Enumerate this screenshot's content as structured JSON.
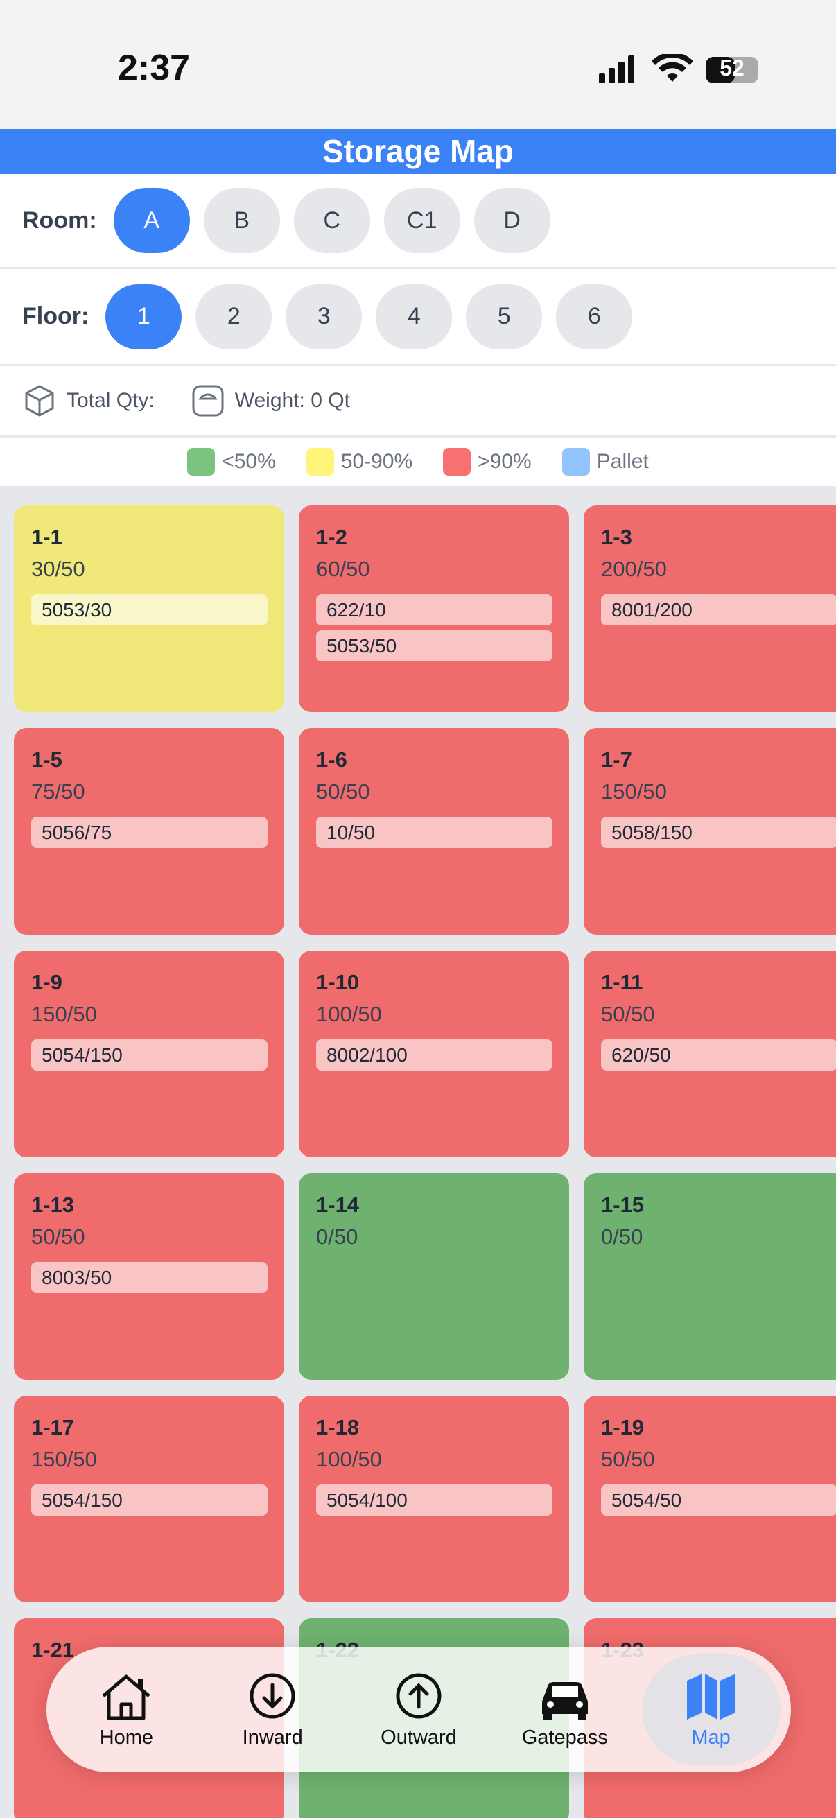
{
  "status": {
    "time": "2:37",
    "battery": "52"
  },
  "header": {
    "title": "Storage Map"
  },
  "room": {
    "label": "Room:",
    "options": [
      "A",
      "B",
      "C",
      "C1",
      "D"
    ],
    "selected": "A"
  },
  "floor": {
    "label": "Floor:",
    "options": [
      "1",
      "2",
      "3",
      "4",
      "5",
      "6"
    ],
    "selected": "1"
  },
  "summary": {
    "total": "Total Qty:",
    "weight": "Weight: 0 Qt"
  },
  "legend": [
    {
      "label": "<50%",
      "color": "#7bc47f"
    },
    {
      "label": "50-90%",
      "color": "#fef57a"
    },
    {
      "label": ">90%",
      "color": "#f87171"
    },
    {
      "label": "Pallet",
      "color": "#93c5fd"
    }
  ],
  "cells": [
    {
      "id": "1-1",
      "qty": "30/50",
      "color": "#f0e97a",
      "items": [
        "5053/30"
      ]
    },
    {
      "id": "1-2",
      "qty": "60/50",
      "color": "#f06b6b",
      "items": [
        "622/10",
        "5053/50"
      ]
    },
    {
      "id": "1-3",
      "qty": "200/50",
      "color": "#f06b6b",
      "items": [
        "8001/200"
      ]
    },
    {
      "id": "1-5",
      "qty": "75/50",
      "color": "#f06b6b",
      "items": [
        "5056/75"
      ]
    },
    {
      "id": "1-6",
      "qty": "50/50",
      "color": "#f06b6b",
      "items": [
        "10/50"
      ]
    },
    {
      "id": "1-7",
      "qty": "150/50",
      "color": "#f06b6b",
      "items": [
        "5058/150"
      ]
    },
    {
      "id": "1-9",
      "qty": "150/50",
      "color": "#f06b6b",
      "items": [
        "5054/150"
      ]
    },
    {
      "id": "1-10",
      "qty": "100/50",
      "color": "#f06b6b",
      "items": [
        "8002/100"
      ]
    },
    {
      "id": "1-11",
      "qty": "50/50",
      "color": "#f06b6b",
      "items": [
        "620/50"
      ]
    },
    {
      "id": "1-13",
      "qty": "50/50",
      "color": "#f06b6b",
      "items": [
        "8003/50"
      ]
    },
    {
      "id": "1-14",
      "qty": "0/50",
      "color": "#6fb26f",
      "items": []
    },
    {
      "id": "1-15",
      "qty": "0/50",
      "color": "#6fb26f",
      "items": []
    },
    {
      "id": "1-17",
      "qty": "150/50",
      "color": "#f06b6b",
      "items": [
        "5054/150"
      ]
    },
    {
      "id": "1-18",
      "qty": "100/50",
      "color": "#f06b6b",
      "items": [
        "5054/100"
      ]
    },
    {
      "id": "1-19",
      "qty": "50/50",
      "color": "#f06b6b",
      "items": [
        "5054/50"
      ]
    },
    {
      "id": "1-21",
      "color": "#f06b6b",
      "items": []
    },
    {
      "id": "1-22",
      "color": "#6fb26f",
      "items": []
    },
    {
      "id": "1-23",
      "color": "#f06b6b",
      "items": []
    }
  ],
  "nav": {
    "items": [
      "Home",
      "Inward",
      "Outward",
      "Gatepass",
      "Map"
    ],
    "selected": "Map"
  }
}
